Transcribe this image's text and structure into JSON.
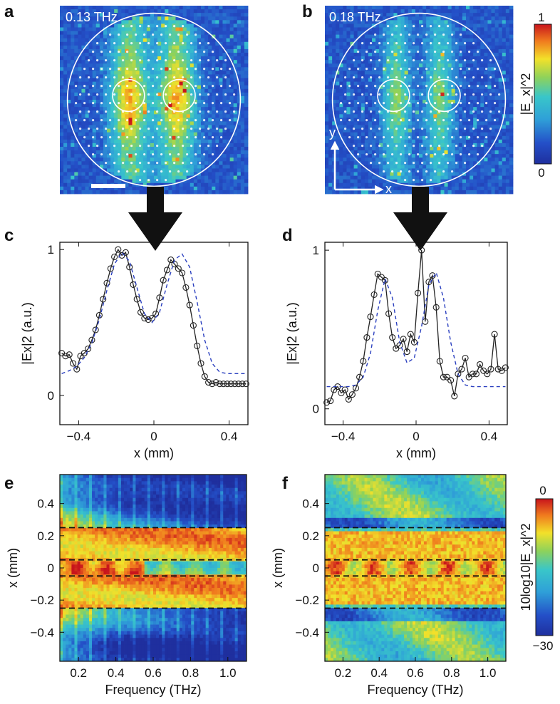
{
  "panels": {
    "a": {
      "label": "a",
      "freq": "0.13 THz"
    },
    "b": {
      "label": "b",
      "freq": "0.18 THz",
      "axis_y": "y",
      "axis_x": "x"
    },
    "c": {
      "label": "c"
    },
    "d": {
      "label": "d"
    },
    "e": {
      "label": "e"
    },
    "f": {
      "label": "f"
    }
  },
  "colorbar_top": {
    "max": "1",
    "min": "0",
    "label": "|E_x|^2"
  },
  "colorbar_bottom": {
    "max": "0",
    "min": "−30",
    "label": "10log10|E_x|^2"
  },
  "colors": {
    "jet_low": "#1f2f9e",
    "jet_mid": "#39c6c9",
    "jet_high": "#d11a1a",
    "fit": "#2a3fbf",
    "data": "#222222"
  },
  "chart_data": [
    {
      "id": "c",
      "type": "line",
      "xlabel": "x (mm)",
      "ylabel": "|Ex|2 (a.u.)",
      "xlim": [
        -0.5,
        0.5
      ],
      "ylim": [
        -0.2,
        1.05
      ],
      "xticks": [
        -0.4,
        0,
        0.4
      ],
      "xtick_labels": [
        "−0.4",
        "0",
        "0.4"
      ],
      "yticks": [
        0,
        1
      ],
      "ytick_labels": [
        "0",
        "1"
      ],
      "series": [
        {
          "name": "measured",
          "style": "solid-circles",
          "x": [
            -0.49,
            -0.47,
            -0.45,
            -0.43,
            -0.41,
            -0.39,
            -0.37,
            -0.35,
            -0.33,
            -0.31,
            -0.29,
            -0.27,
            -0.25,
            -0.23,
            -0.21,
            -0.19,
            -0.17,
            -0.15,
            -0.13,
            -0.11,
            -0.09,
            -0.07,
            -0.05,
            -0.03,
            -0.01,
            0.01,
            0.03,
            0.05,
            0.07,
            0.09,
            0.11,
            0.13,
            0.15,
            0.17,
            0.19,
            0.21,
            0.23,
            0.25,
            0.27,
            0.29,
            0.31,
            0.33,
            0.35,
            0.37,
            0.39,
            0.41,
            0.43,
            0.45,
            0.47,
            0.49
          ],
          "y": [
            0.29,
            0.27,
            0.28,
            0.22,
            0.18,
            0.27,
            0.29,
            0.32,
            0.38,
            0.45,
            0.55,
            0.66,
            0.77,
            0.87,
            0.95,
            1.0,
            0.96,
            0.98,
            0.88,
            0.76,
            0.66,
            0.57,
            0.53,
            0.52,
            0.53,
            0.56,
            0.67,
            0.79,
            0.86,
            0.93,
            0.9,
            0.87,
            0.84,
            0.74,
            0.62,
            0.48,
            0.34,
            0.22,
            0.13,
            0.09,
            0.08,
            0.09,
            0.08,
            0.08,
            0.08,
            0.08,
            0.08,
            0.08,
            0.08,
            0.08
          ]
        },
        {
          "name": "fit",
          "style": "dashed",
          "x": [
            -0.49,
            -0.45,
            -0.41,
            -0.37,
            -0.33,
            -0.29,
            -0.25,
            -0.21,
            -0.17,
            -0.13,
            -0.09,
            -0.05,
            -0.01,
            0.03,
            0.07,
            0.11,
            0.15,
            0.19,
            0.23,
            0.27,
            0.31,
            0.35,
            0.39,
            0.43,
            0.47,
            0.49
          ],
          "y": [
            0.15,
            0.17,
            0.2,
            0.26,
            0.36,
            0.52,
            0.72,
            0.9,
            0.98,
            0.92,
            0.74,
            0.56,
            0.5,
            0.57,
            0.76,
            0.93,
            0.97,
            0.88,
            0.64,
            0.38,
            0.22,
            0.16,
            0.15,
            0.15,
            0.15,
            0.15
          ]
        }
      ]
    },
    {
      "id": "d",
      "type": "line",
      "xlabel": "x (mm)",
      "ylabel": "|Ex|2 (a.u.)",
      "xlim": [
        -0.5,
        0.5
      ],
      "ylim": [
        -0.1,
        1.05
      ],
      "xticks": [
        -0.4,
        0,
        0.4
      ],
      "xtick_labels": [
        "−0.4",
        "0",
        "0.4"
      ],
      "yticks": [
        0,
        1
      ],
      "ytick_labels": [
        "0",
        "1"
      ],
      "series": [
        {
          "name": "measured",
          "style": "solid-circles",
          "x": [
            -0.49,
            -0.47,
            -0.45,
            -0.43,
            -0.41,
            -0.39,
            -0.37,
            -0.35,
            -0.33,
            -0.31,
            -0.29,
            -0.27,
            -0.25,
            -0.23,
            -0.21,
            -0.19,
            -0.17,
            -0.15,
            -0.13,
            -0.11,
            -0.09,
            -0.07,
            -0.05,
            -0.03,
            -0.01,
            0.01,
            0.03,
            0.05,
            0.07,
            0.09,
            0.11,
            0.13,
            0.15,
            0.17,
            0.19,
            0.21,
            0.23,
            0.25,
            0.27,
            0.29,
            0.31,
            0.33,
            0.35,
            0.37,
            0.39,
            0.41,
            0.43,
            0.45,
            0.47,
            0.49
          ],
          "y": [
            0.04,
            0.05,
            0.12,
            0.14,
            0.1,
            0.12,
            0.06,
            0.09,
            0.13,
            0.2,
            0.3,
            0.45,
            0.58,
            0.72,
            0.85,
            0.83,
            0.81,
            0.6,
            0.45,
            0.38,
            0.4,
            0.44,
            0.36,
            0.47,
            0.42,
            0.73,
            1.0,
            0.55,
            0.8,
            0.84,
            0.64,
            0.3,
            0.2,
            0.2,
            0.18,
            0.08,
            0.22,
            0.25,
            0.32,
            0.2,
            0.22,
            0.22,
            0.28,
            0.24,
            0.22,
            0.25,
            0.47,
            0.25,
            0.24,
            0.26
          ]
        },
        {
          "name": "fit",
          "style": "dashed",
          "x": [
            -0.49,
            -0.45,
            -0.41,
            -0.37,
            -0.33,
            -0.29,
            -0.25,
            -0.21,
            -0.17,
            -0.13,
            -0.09,
            -0.05,
            -0.01,
            0.03,
            0.07,
            0.11,
            0.15,
            0.19,
            0.23,
            0.27,
            0.31,
            0.35,
            0.39,
            0.43,
            0.47,
            0.49
          ],
          "y": [
            0.14,
            0.14,
            0.14,
            0.14,
            0.15,
            0.2,
            0.35,
            0.62,
            0.82,
            0.7,
            0.42,
            0.29,
            0.32,
            0.52,
            0.78,
            0.86,
            0.7,
            0.42,
            0.22,
            0.15,
            0.14,
            0.14,
            0.14,
            0.14,
            0.14,
            0.14
          ]
        }
      ]
    },
    {
      "id": "e",
      "type": "heatmap",
      "xlabel": "Frequency (THz)",
      "ylabel": "x (mm)",
      "xlim": [
        0.1,
        1.1
      ],
      "ylim": [
        -0.58,
        0.58
      ],
      "xticks": [
        0.2,
        0.4,
        0.6,
        0.8,
        1.0
      ],
      "xtick_labels": [
        "0.2",
        "0.4",
        "0.6",
        "0.8",
        "1.0"
      ],
      "yticks": [
        0.4,
        0.2,
        0,
        -0.2,
        -0.4
      ],
      "ytick_labels": [
        "0.4",
        "0.2",
        "0",
        "−0.2",
        "−0.4"
      ],
      "dashed_lines_y": [
        0.25,
        0.05,
        -0.05,
        -0.25
      ],
      "value_range_db": [
        -30,
        0
      ]
    },
    {
      "id": "f",
      "type": "heatmap",
      "xlabel": "Frequency (THz)",
      "ylabel": "x (mm)",
      "xlim": [
        0.1,
        1.1
      ],
      "ylim": [
        -0.58,
        0.58
      ],
      "xticks": [
        0.2,
        0.4,
        0.6,
        0.8,
        1.0
      ],
      "xtick_labels": [
        "0.2",
        "0.4",
        "0.6",
        "0.8",
        "1.0"
      ],
      "yticks": [
        0.4,
        0.2,
        0,
        -0.2,
        -0.4
      ],
      "ytick_labels": [
        "0.4",
        "0.2",
        "0",
        "−0.2",
        "−0.4"
      ],
      "dashed_lines_y": [
        0.25,
        0.05,
        -0.05,
        -0.25
      ],
      "value_range_db": [
        -30,
        0
      ]
    }
  ]
}
